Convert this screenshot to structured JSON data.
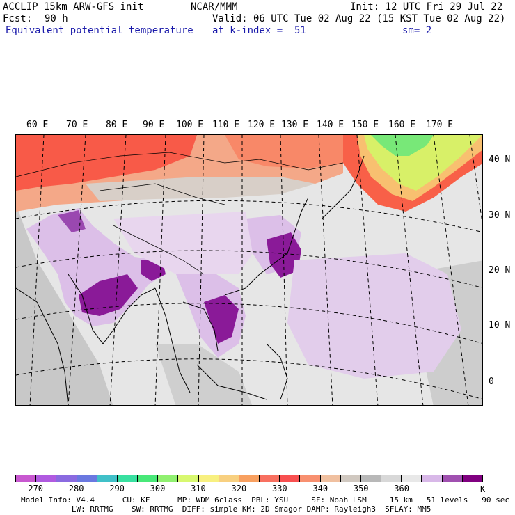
{
  "header": {
    "model_title": "ACCLIP 15km ARW-GFS init",
    "org": "NCAR/MMM",
    "init": "Init: 12 UTC Fri 29 Jul 22",
    "fcst_label": "Fcst:",
    "fcst_value": "90 h",
    "valid": "Valid: 06 UTC Tue 02 Aug 22 (15 KST Tue 02 Aug 22)",
    "field": "Equivalent potential temperature",
    "level": "at k-index =  51",
    "smooth": "sm= 2"
  },
  "map": {
    "lon_labels": [
      "60 E",
      "70 E",
      "80 E",
      "90 E",
      "100 E",
      "110 E",
      "120 E",
      "130 E",
      "140 E",
      "150 E",
      "160 E",
      "170 E"
    ],
    "lat_labels": [
      "40 N",
      "30 N",
      "20 N",
      "10 N",
      "0"
    ]
  },
  "colorbar": {
    "colors": [
      "#c858d0",
      "#b05ae0",
      "#8a6ae0",
      "#6a78e0",
      "#40c0c8",
      "#38e0a0",
      "#48e878",
      "#90f070",
      "#d8f870",
      "#f8f080",
      "#f8d080",
      "#f8a060",
      "#f87060",
      "#f85050",
      "#f89070",
      "#f0c0a0",
      "#d0c8c0",
      "#b8b8b8",
      "#d8d8d8",
      "#e8e8e8",
      "#d8b8e8",
      "#a050b0",
      "#800080"
    ],
    "labels": [
      "270",
      "280",
      "290",
      "300",
      "310",
      "320",
      "330",
      "340",
      "350",
      "360"
    ],
    "unit": "K"
  },
  "footer": {
    "line1": "Model Info: V4.4      CU: KF      MP: WDM 6class  PBL: YSU     SF: Noah LSM     15 km   51 levels   90 sec",
    "line2": "           LW: RRTMG    SW: RRTMG  DIFF: simple KM: 2D Smagor DAMP: Rayleigh3  SFLAY: MM5"
  }
}
